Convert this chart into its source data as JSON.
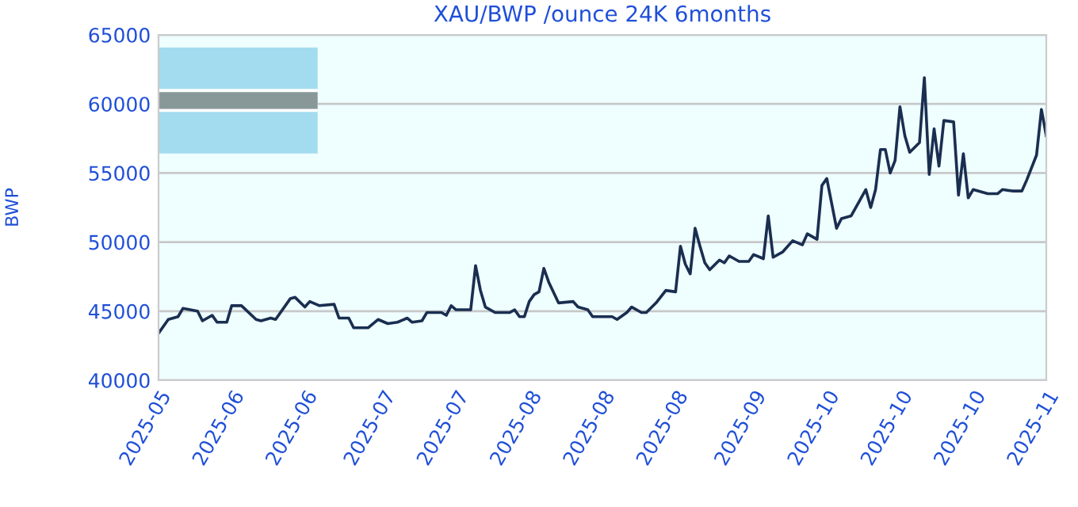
{
  "chart_data": {
    "type": "line",
    "title": "XAU/BWP /ounce 24K 6months",
    "ylabel": "BWP",
    "x": [
      "2025-05-17",
      "2025-05-19",
      "2025-05-21",
      "2025-05-22",
      "2025-05-25",
      "2025-05-26",
      "2025-05-28",
      "2025-05-29",
      "2025-05-31",
      "2025-06-01",
      "2025-06-03",
      "2025-06-06",
      "2025-06-07",
      "2025-06-09",
      "2025-06-10",
      "2025-06-13",
      "2025-06-14",
      "2025-06-16",
      "2025-06-17",
      "2025-06-19",
      "2025-06-22",
      "2025-06-23",
      "2025-06-25",
      "2025-06-26",
      "2025-06-29",
      "2025-07-01",
      "2025-07-03",
      "2025-07-05",
      "2025-07-07",
      "2025-07-08",
      "2025-07-10",
      "2025-07-11",
      "2025-07-14",
      "2025-07-15",
      "2025-07-16",
      "2025-07-17",
      "2025-07-20",
      "2025-07-21",
      "2025-07-22",
      "2025-07-23",
      "2025-07-25",
      "2025-07-28",
      "2025-07-29",
      "2025-07-30",
      "2025-07-31",
      "2025-08-01",
      "2025-08-02",
      "2025-08-03",
      "2025-08-04",
      "2025-08-05",
      "2025-08-07",
      "2025-08-10",
      "2025-08-11",
      "2025-08-13",
      "2025-08-14",
      "2025-08-18",
      "2025-08-19",
      "2025-08-21",
      "2025-08-22",
      "2025-08-24",
      "2025-08-25",
      "2025-08-27",
      "2025-08-29",
      "2025-08-31",
      "2025-09-01",
      "2025-09-02",
      "2025-09-03",
      "2025-09-04",
      "2025-09-05",
      "2025-09-06",
      "2025-09-07",
      "2025-09-09",
      "2025-09-10",
      "2025-09-11",
      "2025-09-13",
      "2025-09-15",
      "2025-09-16",
      "2025-09-18",
      "2025-09-19",
      "2025-09-20",
      "2025-09-22",
      "2025-09-24",
      "2025-09-26",
      "2025-09-27",
      "2025-09-29",
      "2025-09-30",
      "2025-10-01",
      "2025-10-03",
      "2025-10-04",
      "2025-10-06",
      "2025-10-09",
      "2025-10-10",
      "2025-10-11",
      "2025-10-12",
      "2025-10-13",
      "2025-10-14",
      "2025-10-15",
      "2025-10-16",
      "2025-10-17",
      "2025-10-18",
      "2025-10-20",
      "2025-10-21",
      "2025-10-22",
      "2025-10-23",
      "2025-10-24",
      "2025-10-25",
      "2025-10-27",
      "2025-10-28",
      "2025-10-29",
      "2025-10-30",
      "2025-10-31",
      "2025-11-03",
      "2025-11-05",
      "2025-11-06",
      "2025-11-08",
      "2025-11-10",
      "2025-11-11",
      "2025-11-13",
      "2025-11-14",
      "2025-11-15"
    ],
    "series": [
      {
        "color": "#1a2e50",
        "values": [
          43400,
          44400,
          44600,
          45200,
          45000,
          44300,
          44700,
          44200,
          44200,
          45400,
          45400,
          44400,
          44300,
          44500,
          44400,
          45900,
          46000,
          45300,
          45700,
          45400,
          45500,
          44500,
          44500,
          43800,
          43800,
          44400,
          44100,
          44200,
          44500,
          44200,
          44300,
          44900,
          44900,
          44700,
          45400,
          45100,
          45100,
          48300,
          46500,
          45300,
          44900,
          44900,
          45100,
          44600,
          44600,
          45700,
          46200,
          46400,
          48100,
          47100,
          45600,
          45700,
          45300,
          45100,
          44600,
          44600,
          44400,
          44900,
          45300,
          44900,
          44900,
          45600,
          46500,
          46400,
          49700,
          48400,
          47700,
          51000,
          49700,
          48500,
          48000,
          48700,
          48500,
          49000,
          48600,
          48600,
          49100,
          48800,
          51900,
          48900,
          49300,
          50100,
          49800,
          50600,
          50200,
          54100,
          54600,
          51000,
          51700,
          51900,
          53800,
          52500,
          53800,
          56700,
          56700,
          55000,
          55900,
          59800,
          57700,
          56500,
          57200,
          61900,
          54900,
          58200,
          55500,
          58800,
          58700,
          53400,
          56400,
          53200,
          53800,
          53500,
          53500,
          53800,
          53700,
          53700,
          54500,
          56300,
          59600,
          57700
        ]
      }
    ],
    "xlim": [
      "2025-05-17",
      "2025-11-15"
    ],
    "xticks": [
      {
        "value": "2025-05-17",
        "label": "2025-05"
      },
      {
        "value": "2025-06-01",
        "label": "2025-06"
      },
      {
        "value": "2025-06-16",
        "label": "2025-06"
      },
      {
        "value": "2025-07-02",
        "label": "2025-07"
      },
      {
        "value": "2025-07-17",
        "label": "2025-07"
      },
      {
        "value": "2025-08-01",
        "label": "2025-08"
      },
      {
        "value": "2025-08-16",
        "label": "2025-08"
      },
      {
        "value": "2025-08-31",
        "label": "2025-08"
      },
      {
        "value": "2025-09-16",
        "label": "2025-09"
      },
      {
        "value": "2025-10-01",
        "label": "2025-10"
      },
      {
        "value": "2025-10-16",
        "label": "2025-10"
      },
      {
        "value": "2025-10-31",
        "label": "2025-10"
      },
      {
        "value": "2025-11-15",
        "label": "2025-11"
      }
    ],
    "ylim": [
      40000,
      65000
    ],
    "yticks": [
      40000,
      45000,
      50000,
      55000,
      60000,
      65000
    ],
    "grid": "y",
    "legend": false,
    "marker": "none",
    "line_style": "solid"
  }
}
